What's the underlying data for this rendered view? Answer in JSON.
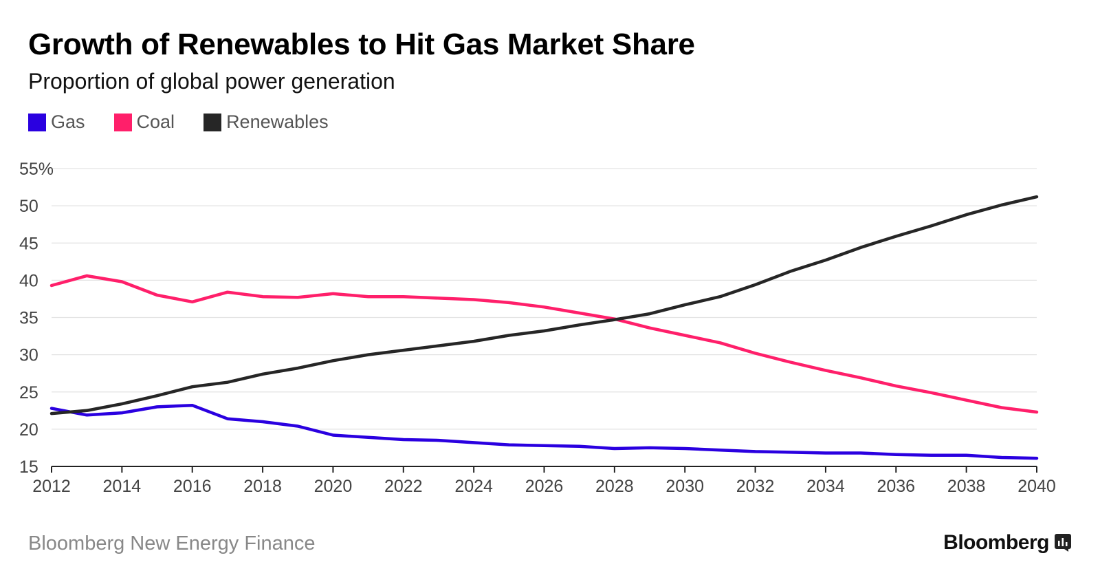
{
  "colors": {
    "gas": "#2a00e0",
    "coal": "#ff1f6a",
    "renewables": "#262626"
  },
  "chart_data": {
    "type": "line",
    "title": "Growth of Renewables to Hit Gas Market Share",
    "subtitle": "Proportion of global power generation",
    "xlabel": "",
    "ylabel": "",
    "x": [
      2012,
      2013,
      2014,
      2015,
      2016,
      2017,
      2018,
      2019,
      2020,
      2021,
      2022,
      2023,
      2024,
      2025,
      2026,
      2027,
      2028,
      2029,
      2030,
      2031,
      2032,
      2033,
      2034,
      2035,
      2036,
      2037,
      2038,
      2039,
      2040
    ],
    "xlim": [
      2012,
      2040
    ],
    "ylim": [
      15,
      55
    ],
    "x_ticks": [
      "2012",
      "2014",
      "2016",
      "2018",
      "2020",
      "2022",
      "2024",
      "2026",
      "2028",
      "2030",
      "2032",
      "2034",
      "2036",
      "2038",
      "2040"
    ],
    "y_ticks": [
      "55%",
      "50",
      "45",
      "40",
      "35",
      "30",
      "25",
      "20",
      "15"
    ],
    "grid": "horizontal",
    "legend_position": "top-left",
    "series": [
      {
        "name": "Gas",
        "color": "#2a00e0",
        "values": [
          22.8,
          21.9,
          22.2,
          23.0,
          23.2,
          21.4,
          21.0,
          20.4,
          19.2,
          18.9,
          18.6,
          18.5,
          18.2,
          17.9,
          17.8,
          17.7,
          17.4,
          17.5,
          17.4,
          17.2,
          17.0,
          16.9,
          16.8,
          16.8,
          16.6,
          16.5,
          16.5,
          16.2,
          16.1
        ]
      },
      {
        "name": "Coal",
        "color": "#ff1f6a",
        "values": [
          39.3,
          40.6,
          39.8,
          38.0,
          37.1,
          38.4,
          37.8,
          37.7,
          38.2,
          37.8,
          37.8,
          37.6,
          37.4,
          37.0,
          36.4,
          35.6,
          34.8,
          33.6,
          32.6,
          31.6,
          30.2,
          29.0,
          27.9,
          26.9,
          25.8,
          24.9,
          23.9,
          22.9,
          22.3
        ]
      },
      {
        "name": "Renewables",
        "color": "#262626",
        "values": [
          22.1,
          22.5,
          23.4,
          24.5,
          25.7,
          26.3,
          27.4,
          28.2,
          29.2,
          30.0,
          30.6,
          31.2,
          31.8,
          32.6,
          33.2,
          34.0,
          34.7,
          35.5,
          36.7,
          37.8,
          39.4,
          41.2,
          42.7,
          44.4,
          45.9,
          47.3,
          48.8,
          50.1,
          51.2
        ]
      }
    ]
  },
  "legend": [
    {
      "label": "Gas",
      "color": "#2a00e0"
    },
    {
      "label": "Coal",
      "color": "#ff1f6a"
    },
    {
      "label": "Renewables",
      "color": "#262626"
    }
  ],
  "footer": {
    "source": "Bloomberg New Energy Finance",
    "brand": "Bloomberg",
    "brand_icon": "bloomberg-chart-icon"
  }
}
